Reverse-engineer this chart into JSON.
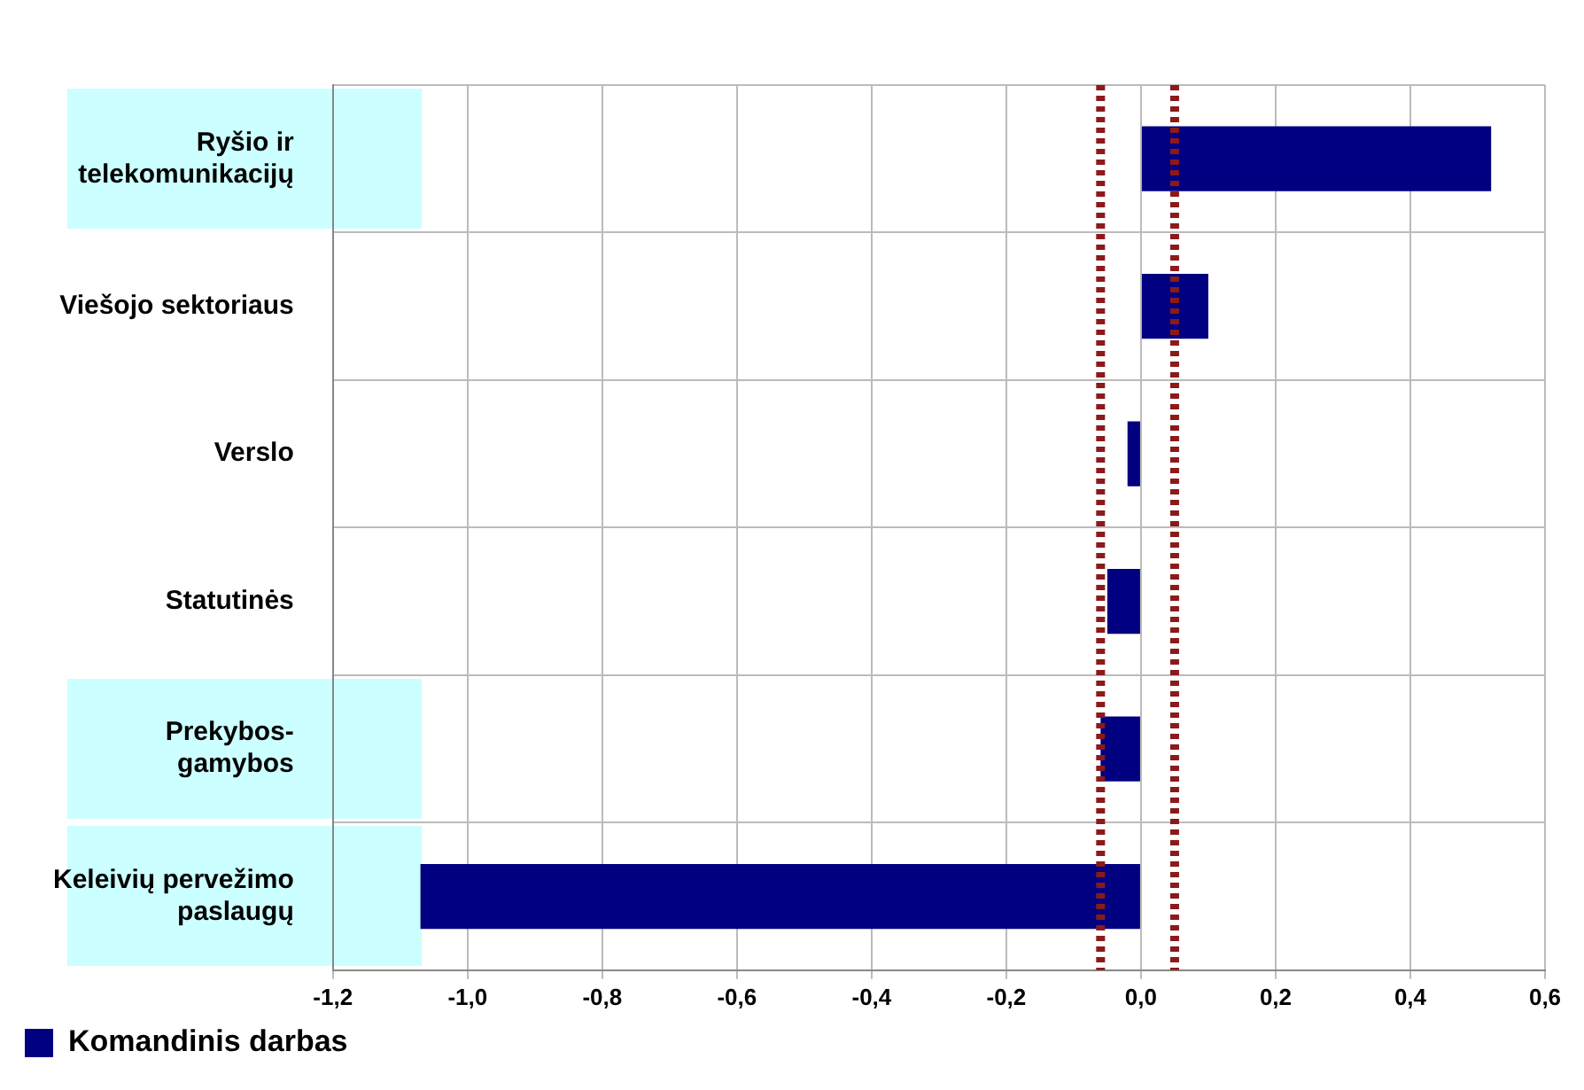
{
  "chart_data": {
    "type": "bar",
    "orientation": "horizontal",
    "categories": [
      "Ryšio ir\ntelekomunikacijų",
      "Viešojo sektoriaus",
      "Verslo",
      "Statutinės",
      "Prekybos-\ngamybos",
      "Keleivių pervežimo\npaslaugų"
    ],
    "series": [
      {
        "name": "Komandinis darbas",
        "color": "#000080",
        "values": [
          0.52,
          0.1,
          -0.02,
          -0.05,
          -0.06,
          -1.07
        ]
      }
    ],
    "xlim": [
      -1.2,
      0.6
    ],
    "xticks": [
      {
        "value": -1.2,
        "label": "-1,2"
      },
      {
        "value": -1,
        "label": "-1,0"
      },
      {
        "value": -0.8,
        "label": "-0,8"
      },
      {
        "value": -0.6,
        "label": "-0,6"
      },
      {
        "value": -0.4,
        "label": "-0,4"
      },
      {
        "value": -0.2,
        "label": "-0,2"
      },
      {
        "value": 0,
        "label": "0,0"
      },
      {
        "value": 0.2,
        "label": "0,2"
      },
      {
        "value": 0.4,
        "label": "0,4"
      },
      {
        "value": 0.6,
        "label": "0,6"
      }
    ],
    "ref_lines": [
      {
        "axis": "x",
        "value": -0.06,
        "color": "#8b1a1a",
        "line_style": "dotted"
      },
      {
        "axis": "x",
        "value": 0.05,
        "color": "#8b1a1a",
        "line_style": "dotted"
      }
    ],
    "grid": true,
    "legend": "bottom left"
  }
}
